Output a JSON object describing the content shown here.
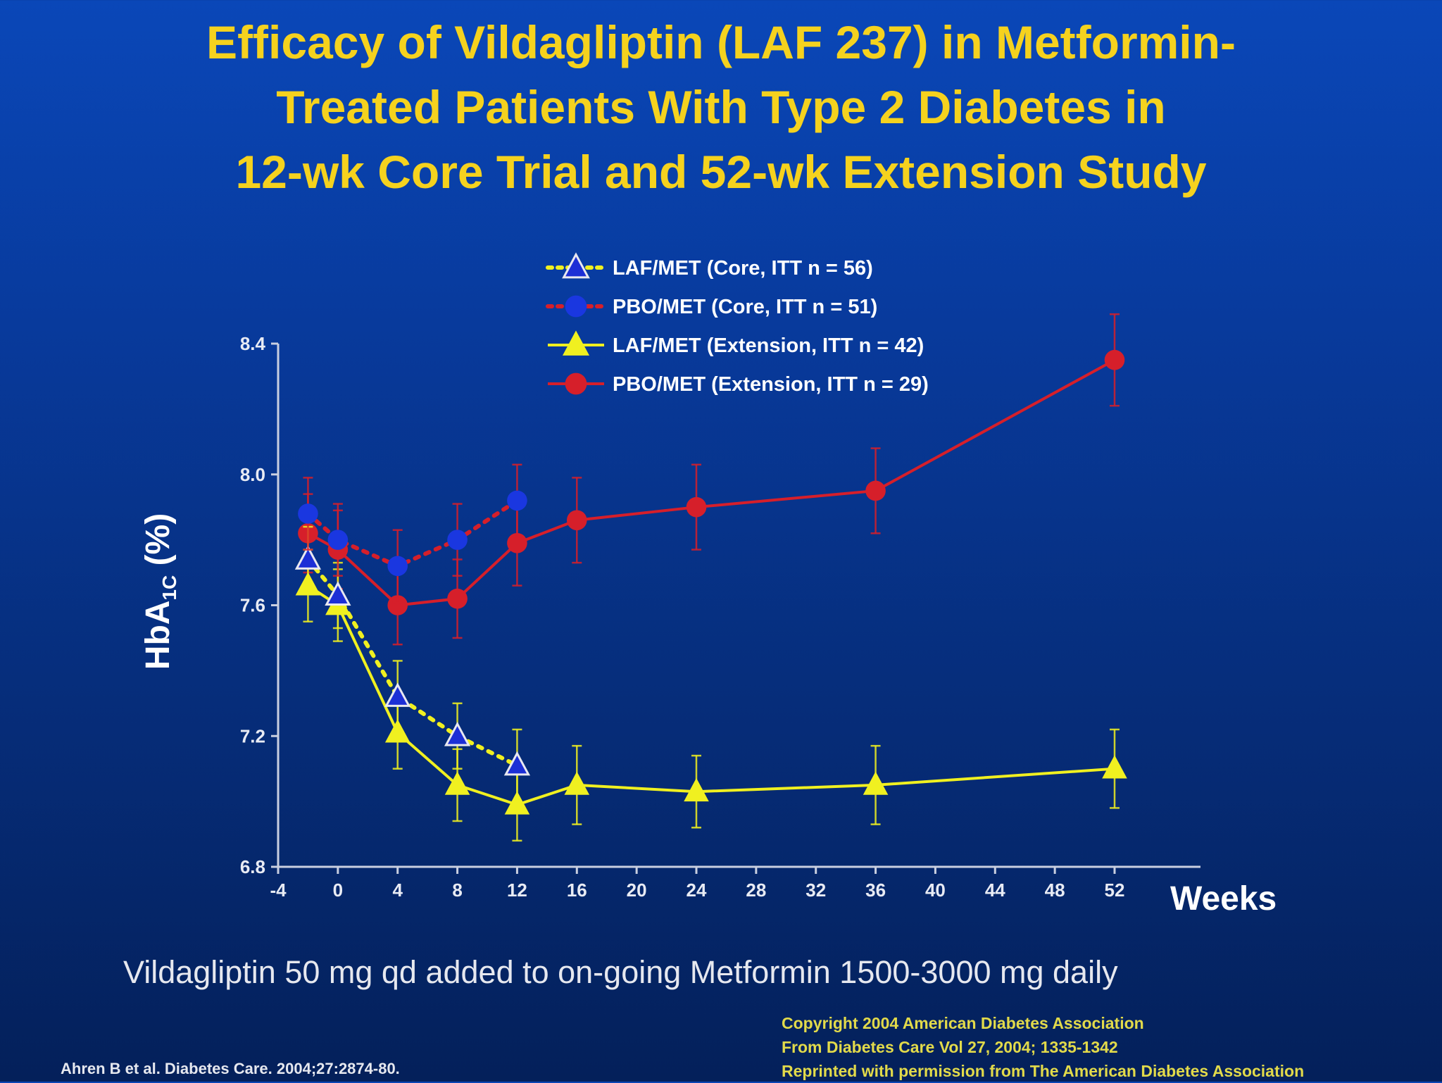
{
  "title_lines": [
    "Efficacy of Vildagliptin (LAF 237) in Metformin-",
    "Treated Patients With Type 2 Diabetes in",
    "12-wk Core Trial and 52-wk Extension Study"
  ],
  "subtitle": "Vildagliptin 50 mg qd added to on-going Metformin 1500-3000 mg daily",
  "citation": "Ahren B et al. Diabetes Care. 2004;27:2874-80.",
  "copyright_lines": [
    "Copyright 2004 American Diabetes Association",
    "From Diabetes Care Vol 27, 2004; 1335-1342",
    "Reprinted with permission from The American Diabetes Association"
  ],
  "colors": {
    "title": "#f5d21e",
    "laf": "#f0f020",
    "pbo": "#d61f2a",
    "core_laf_marker": "#1c2fd6",
    "core_pbo_marker": "#1a37e0",
    "axis": "#c9cfe0"
  },
  "chart_data": {
    "type": "line",
    "xlabel": "Weeks",
    "ylabel": "HbA1c (%)",
    "ylabel_parts": {
      "main": "HbA",
      "sub": "1C",
      "rest": " (%)"
    },
    "xlim": [
      -4,
      56
    ],
    "ylim": [
      6.8,
      8.4
    ],
    "x_ticks": [
      -4,
      0,
      4,
      8,
      12,
      16,
      20,
      24,
      28,
      32,
      36,
      40,
      44,
      48,
      52
    ],
    "y_ticks": [
      6.8,
      7.2,
      7.6,
      8.0,
      8.4
    ],
    "y_tick_labels": [
      "6.8",
      "7.2",
      "7.6",
      "8.0",
      "8.4"
    ],
    "legend_position": "top-center",
    "series": [
      {
        "name": "LAF/MET (Core, ITT n = 56)",
        "style": "dotted",
        "marker": "triangle-open",
        "color": "#f0f020",
        "marker_color": "#1c2fd6",
        "x": [
          -2,
          0,
          4,
          8,
          12
        ],
        "y": [
          7.74,
          7.63,
          7.32,
          7.2,
          7.11
        ],
        "err": [
          0.1,
          0.1,
          0.11,
          0.1,
          0.11
        ]
      },
      {
        "name": "PBO/MET (Core, ITT n = 51)",
        "style": "dotted",
        "marker": "circle",
        "color": "#d61f2a",
        "marker_color": "#1a37e0",
        "x": [
          -2,
          0,
          4,
          8,
          12
        ],
        "y": [
          7.88,
          7.8,
          7.72,
          7.8,
          7.92
        ],
        "err": [
          0.11,
          0.11,
          0.11,
          0.11,
          0.11
        ]
      },
      {
        "name": "LAF/MET (Extension, ITT n = 42)",
        "style": "solid",
        "marker": "triangle",
        "color": "#f0f020",
        "marker_color": "#f0f020",
        "x": [
          -2,
          0,
          4,
          8,
          12,
          16,
          24,
          36,
          52
        ],
        "y": [
          7.66,
          7.6,
          7.21,
          7.05,
          6.99,
          7.05,
          7.03,
          7.05,
          7.1
        ],
        "err": [
          0.11,
          0.11,
          0.11,
          0.11,
          0.11,
          0.12,
          0.11,
          0.12,
          0.12
        ]
      },
      {
        "name": "PBO/MET (Extension, ITT n = 29)",
        "style": "solid",
        "marker": "circle",
        "color": "#d61f2a",
        "marker_color": "#d61f2a",
        "x": [
          -2,
          0,
          4,
          8,
          12,
          16,
          24,
          36,
          52
        ],
        "y": [
          7.82,
          7.77,
          7.6,
          7.62,
          7.79,
          7.86,
          7.9,
          7.95,
          8.35
        ],
        "err": [
          0.12,
          0.12,
          0.12,
          0.12,
          0.13,
          0.13,
          0.13,
          0.13,
          0.14
        ]
      }
    ]
  }
}
